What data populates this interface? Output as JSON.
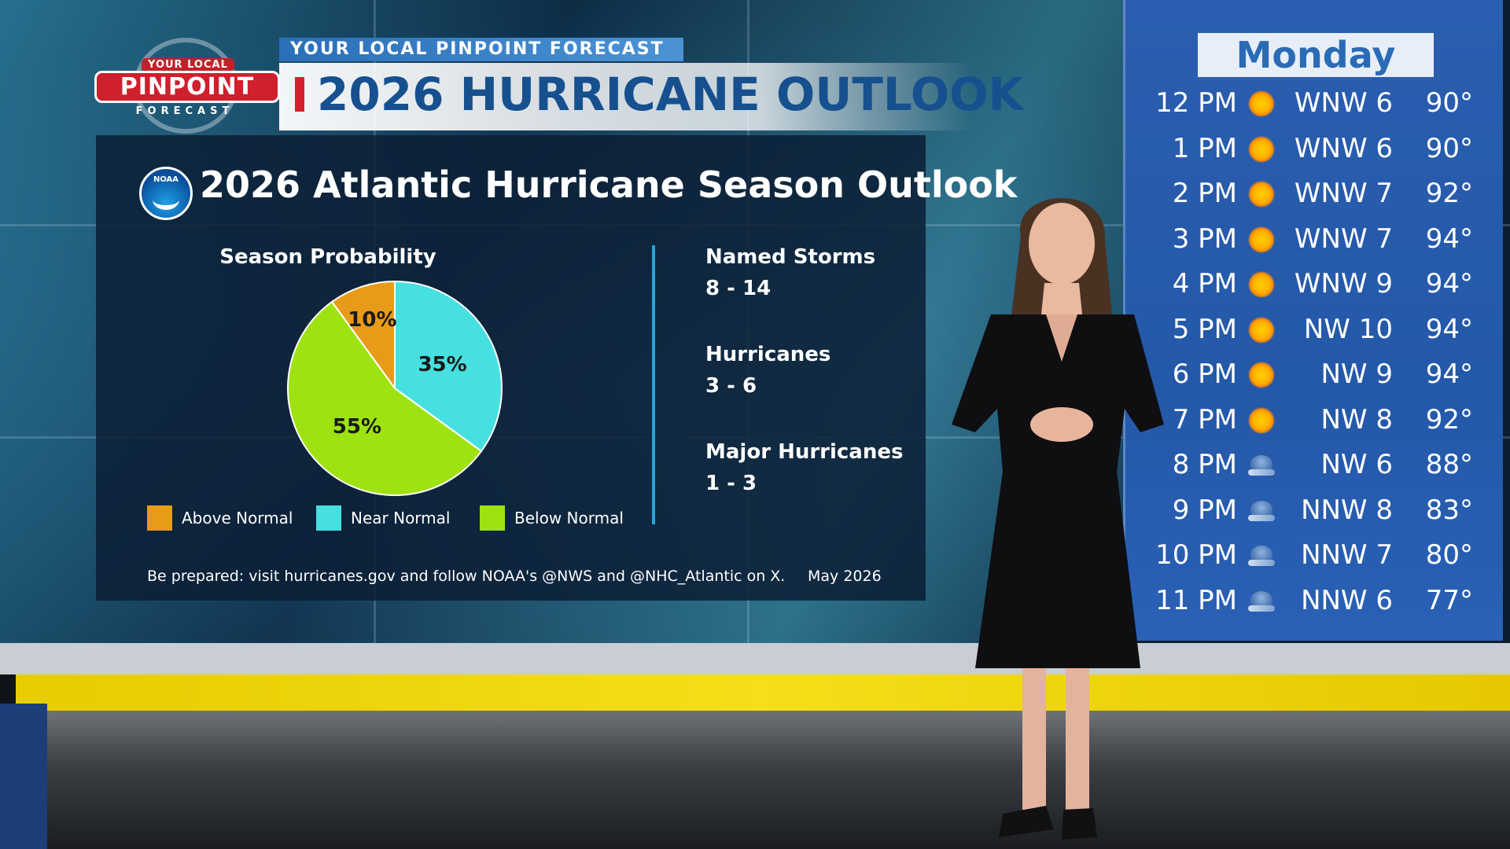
{
  "logo": {
    "top": "YOUR LOCAL",
    "main": "PINPOINT",
    "bottom": "FORECAST"
  },
  "header": {
    "kicker": "YOUR LOCAL PINPOINT FORECAST",
    "headline": "2026 HURRICANE OUTLOOK"
  },
  "outlook": {
    "noaa_logo_text": "NOAA",
    "title": "2026 Atlantic Hurricane Season Outlook",
    "stats": [
      {
        "label": "Named Storms",
        "value": "8 - 14"
      },
      {
        "label": "Hurricanes",
        "value": "3 - 6"
      },
      {
        "label": "Major Hurricanes",
        "value": "1 - 3"
      }
    ],
    "footer_note": "Be prepared: visit hurricanes.gov  and follow NOAA's @NWS and @NHC_Atlantic on X.",
    "date": "May 2026"
  },
  "chart_data": {
    "type": "pie",
    "title": "Season Probability",
    "slices": [
      {
        "label": "Above Normal",
        "value": 10,
        "display": "10%",
        "color": "#e89b18"
      },
      {
        "label": "Near Normal",
        "value": 35,
        "display": "35%",
        "color": "#47e0e0"
      },
      {
        "label": "Below Normal",
        "value": 55,
        "display": "55%",
        "color": "#9ee212"
      }
    ],
    "legend_position": "bottom"
  },
  "hourly": {
    "day": "Monday",
    "rows": [
      {
        "time": "12 PM",
        "icon": "sun-icon",
        "wind": "WNW 6",
        "temp": "90°"
      },
      {
        "time": "1 PM",
        "icon": "sun-icon",
        "wind": "WNW 6",
        "temp": "90°"
      },
      {
        "time": "2 PM",
        "icon": "sun-icon",
        "wind": "WNW 7",
        "temp": "92°"
      },
      {
        "time": "3 PM",
        "icon": "sun-icon",
        "wind": "WNW 7",
        "temp": "94°"
      },
      {
        "time": "4 PM",
        "icon": "sun-icon",
        "wind": "WNW 9",
        "temp": "94°"
      },
      {
        "time": "5 PM",
        "icon": "sun-icon",
        "wind": "NW 10",
        "temp": "94°"
      },
      {
        "time": "6 PM",
        "icon": "sun-icon",
        "wind": "NW 9",
        "temp": "94°"
      },
      {
        "time": "7 PM",
        "icon": "sun-icon",
        "wind": "NW 8",
        "temp": "92°"
      },
      {
        "time": "8 PM",
        "icon": "moon-icon",
        "wind": "NW 6",
        "temp": "88°"
      },
      {
        "time": "9 PM",
        "icon": "moon-icon",
        "wind": "NNW 8",
        "temp": "83°"
      },
      {
        "time": "10 PM",
        "icon": "moon-icon",
        "wind": "NNW 7",
        "temp": "80°"
      },
      {
        "time": "11 PM",
        "icon": "moon-icon",
        "wind": "NNW 6",
        "temp": "77°"
      }
    ]
  }
}
